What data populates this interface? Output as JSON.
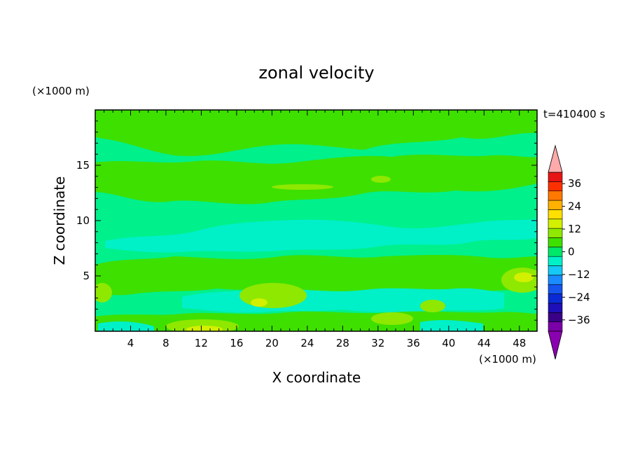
{
  "chart_data": {
    "type": "heatmap",
    "title": "zonal velocity",
    "xlabel": "X coordinate",
    "ylabel": "Z coordinate",
    "x_unit": "(×1000 m)",
    "y_unit": "(×1000 m)",
    "time_label": "t=410400 s",
    "xlim": [
      0,
      50
    ],
    "ylim": [
      0,
      20
    ],
    "xticks": [
      4,
      8,
      12,
      16,
      20,
      24,
      28,
      32,
      36,
      40,
      44,
      48
    ],
    "yticks": [
      5,
      10,
      15
    ],
    "colorbar": {
      "labels": [
        36,
        24,
        12,
        0,
        -12,
        -24,
        -36
      ],
      "levels": [
        -42,
        -36,
        -30,
        -24,
        -18,
        -12,
        -6,
        0,
        6,
        12,
        18,
        24,
        30,
        36,
        42
      ],
      "colors": [
        "#7a00a8",
        "#3a0088",
        "#1f0fb8",
        "#0a2ad6",
        "#1555ee",
        "#1a8cff",
        "#15c8f5",
        "#00f0c8",
        "#00e86a",
        "#3ee000",
        "#8ee800",
        "#d2f000",
        "#ffe000",
        "#ffb000",
        "#ff7800",
        "#ff3000",
        "#e61414",
        "#ffaaaa"
      ],
      "min_extension_color": "#8a00b0",
      "max_extension_color": "#ffaaaa"
    },
    "fields": {
      "cyan_bands": [
        {
          "x": [
            0,
            50
          ],
          "z": [
            9.2,
            11.2
          ],
          "value": -6
        },
        {
          "x": [
            14,
            46
          ],
          "z": [
            2.6,
            4.6
          ],
          "value": -4
        },
        {
          "x": [
            0,
            18
          ],
          "z": [
            0.2,
            1.8
          ],
          "value": -4
        }
      ],
      "green_bands": [
        {
          "x": [
            0,
            50
          ],
          "z": [
            12.2,
            15.8
          ],
          "value": 2
        },
        {
          "x": [
            0,
            50
          ],
          "z": [
            15.8,
            19.8
          ],
          "value": 1
        },
        {
          "x": [
            0,
            50
          ],
          "z": [
            4.5,
            7.5
          ],
          "value": 2
        },
        {
          "x": [
            0,
            50
          ],
          "z": [
            0,
            2.5
          ],
          "value": 2
        }
      ],
      "yellowgreen_blobs": [
        {
          "x": 12,
          "z": 0.5,
          "value": 8
        },
        {
          "x": 20,
          "z": 2.5,
          "value": 9
        },
        {
          "x": 34,
          "z": 1.2,
          "value": 8
        },
        {
          "x": 38,
          "z": 2.2,
          "value": 8
        },
        {
          "x": 48,
          "z": 4.8,
          "value": 10
        },
        {
          "x": 22,
          "z": 12.8,
          "value": 8
        },
        {
          "x": 0.8,
          "z": 3.5,
          "value": 8
        }
      ]
    }
  }
}
